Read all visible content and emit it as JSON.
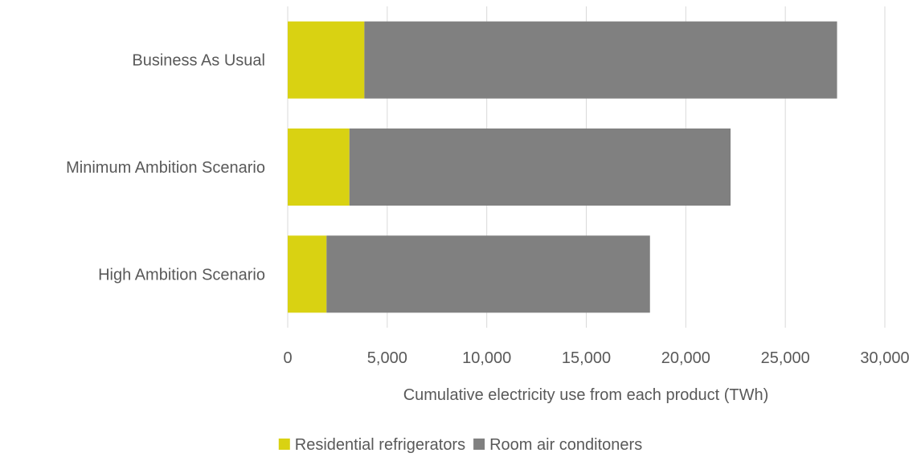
{
  "chart_data": {
    "type": "bar",
    "orientation": "horizontal",
    "stacked": true,
    "title": "",
    "categories": [
      "Business As Usual",
      "Minimum Ambition Scenario",
      "High Ambition Scenario"
    ],
    "series": [
      {
        "name": "Residential refrigerators",
        "color": "#d9d212",
        "values": [
          3850,
          3100,
          1950
        ]
      },
      {
        "name": "Room air conditoners",
        "color": "#808080",
        "values": [
          23750,
          19150,
          16250
        ]
      }
    ],
    "xlabel": "Cumulative electricity use from each product (TWh)",
    "ylabel": "",
    "xlim": [
      0,
      30000
    ],
    "xticks": [
      "0",
      "5,000",
      "10,000",
      "15,000",
      "20,000",
      "25,000",
      "30,000"
    ],
    "grid": true,
    "legend_position": "bottom"
  }
}
